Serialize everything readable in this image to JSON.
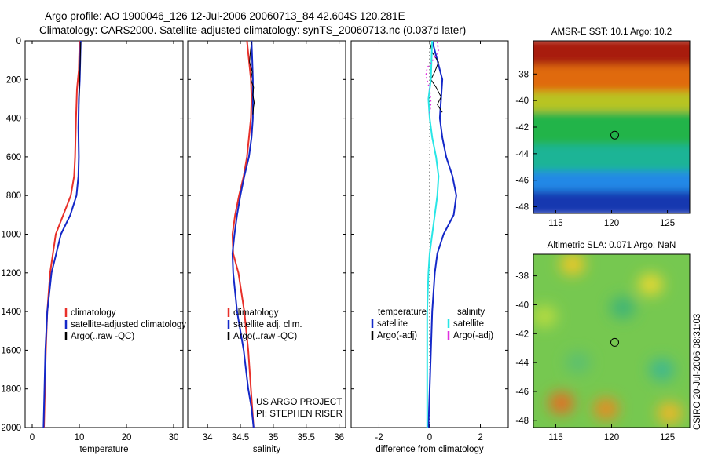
{
  "header": {
    "line1": "Argo profile: AO 1900046_126 12-Jul-2006 20060713_84 42.604S 120.281E",
    "line2": "Climatology: CARS2000. Satellite-adjusted climatology: synTS_20060713.nc (0.037d later)"
  },
  "footer": {
    "credit1": "US ARGO PROJECT",
    "credit2": "PI: STEPHEN RISER",
    "stamp": "CSIRO 20-Jul-2006 08:31:03"
  },
  "colors": {
    "red": "#e8302a",
    "blue": "#1428c8",
    "black": "#000000",
    "cyan": "#28e6e6",
    "magenta": "#e030e0"
  },
  "chart_data": [
    {
      "id": "temperature",
      "type": "line",
      "xlabel": "temperature",
      "xlim": [
        -1.5,
        32
      ],
      "ylim": [
        2000,
        0
      ],
      "xticks": [
        0,
        10,
        20,
        30
      ],
      "yticks": [
        0,
        200,
        400,
        600,
        800,
        1000,
        1200,
        1400,
        1600,
        1800,
        2000
      ],
      "series": [
        {
          "name": "climatology",
          "color": "red",
          "width": 2,
          "x": [
            10.1,
            10.0,
            9.9,
            9.5,
            9.3,
            9.1,
            8.9,
            8.2,
            6.6,
            5.0,
            3.8,
            3.2,
            2.9,
            2.7,
            2.6,
            2.5
          ],
          "y": [
            0,
            50,
            150,
            250,
            400,
            600,
            700,
            800,
            900,
            1000,
            1200,
            1400,
            1600,
            1800,
            1900,
            2000
          ]
        },
        {
          "name": "satellite-adjusted climatology",
          "color": "blue",
          "width": 2,
          "x": [
            10.3,
            10.2,
            10.1,
            9.9,
            9.8,
            9.9,
            9.8,
            9.4,
            8.1,
            6.1,
            4.1,
            3.2,
            2.8,
            2.6,
            2.4
          ],
          "y": [
            0,
            100,
            200,
            300,
            450,
            600,
            700,
            800,
            900,
            1000,
            1200,
            1400,
            1600,
            1800,
            2000
          ]
        },
        {
          "name": "Argo(..raw -QC)",
          "color": "black",
          "width": 1,
          "x": [
            10.3,
            10.2,
            10.1,
            10.0,
            9.9
          ],
          "y": [
            5,
            100,
            180,
            260,
            350
          ]
        }
      ],
      "legend": [
        {
          "label": "climatology",
          "color": "red"
        },
        {
          "label": "satellite-adjusted climatology",
          "color": "blue"
        },
        {
          "label": "Argo(..raw -QC)",
          "color": "black"
        }
      ]
    },
    {
      "id": "salinity",
      "type": "line",
      "xlabel": "salinity",
      "xlim": [
        33.7,
        36.1
      ],
      "ylim": [
        2000,
        0
      ],
      "xticks": [
        34,
        34.5,
        35,
        35.5,
        36
      ],
      "yticks": [
        0,
        200,
        400,
        600,
        800,
        1000,
        1200,
        1400,
        1600,
        1800,
        2000
      ],
      "series": [
        {
          "name": "climatology",
          "color": "red",
          "width": 2,
          "x": [
            34.6,
            34.63,
            34.66,
            34.67,
            34.66,
            34.63,
            34.6,
            34.55,
            34.48,
            34.42,
            34.38,
            34.39,
            34.47,
            34.56,
            34.62,
            34.66,
            34.7
          ],
          "y": [
            0,
            100,
            200,
            300,
            400,
            500,
            600,
            700,
            800,
            900,
            1000,
            1100,
            1200,
            1400,
            1600,
            1800,
            2000
          ]
        },
        {
          "name": "satellite adj. clim.",
          "color": "blue",
          "width": 2,
          "x": [
            34.67,
            34.68,
            34.69,
            34.69,
            34.69,
            34.67,
            34.63,
            34.56,
            34.5,
            34.45,
            34.41,
            34.38,
            34.39,
            34.45,
            34.55,
            34.62,
            34.67,
            34.7
          ],
          "y": [
            0,
            100,
            200,
            300,
            400,
            500,
            600,
            700,
            800,
            900,
            1000,
            1100,
            1200,
            1400,
            1600,
            1800,
            1900,
            2000
          ]
        },
        {
          "name": "Argo(..raw -QC)",
          "color": "black",
          "width": 1,
          "x": [
            34.67,
            34.65,
            34.64,
            34.68,
            34.66,
            34.7,
            34.69,
            34.71,
            34.7,
            34.69
          ],
          "y": [
            5,
            60,
            110,
            160,
            200,
            240,
            280,
            320,
            340,
            380
          ]
        }
      ],
      "legend": [
        {
          "label": "climatology",
          "color": "red"
        },
        {
          "label": "satellite adj. clim.",
          "color": "blue"
        },
        {
          "label": "Argo(..raw -QC)",
          "color": "black"
        }
      ]
    },
    {
      "id": "difference",
      "type": "line",
      "xlabel": "difference from climatology",
      "xlim": [
        -3.1,
        3.1
      ],
      "ylim": [
        2000,
        0
      ],
      "xticks": [
        -2,
        0,
        2
      ],
      "yticks": [
        0,
        200,
        400,
        600,
        800,
        1000,
        1200,
        1400,
        1600,
        1800,
        2000
      ],
      "zero_line": true,
      "series": [
        {
          "name": "temperature satellite",
          "color": "blue",
          "width": 2,
          "x": [
            0.1,
            0.3,
            0.5,
            0.45,
            0.4,
            0.5,
            0.65,
            0.9,
            1.05,
            0.95,
            0.55,
            0.3,
            0.2,
            0.1,
            0.05,
            0.0,
            -0.05
          ],
          "y": [
            0,
            100,
            200,
            300,
            400,
            500,
            600,
            700,
            800,
            900,
            1000,
            1100,
            1200,
            1400,
            1600,
            1800,
            2000
          ]
        },
        {
          "name": "temperature Argo(-adj)",
          "color": "black",
          "width": 1,
          "x": [
            0.0,
            0.1,
            0.35,
            0.2,
            0.05,
            0.25,
            0.45,
            0.3,
            0.5
          ],
          "y": [
            5,
            60,
            110,
            160,
            200,
            240,
            290,
            330,
            370
          ]
        },
        {
          "name": "salinity satellite",
          "color": "cyan",
          "width": 2,
          "x": [
            0.1,
            0.07,
            0.05,
            -0.05,
            0.0,
            0.1,
            0.25,
            0.35,
            0.3,
            0.2,
            0.1,
            0.0,
            -0.05,
            -0.1,
            -0.1,
            -0.1,
            -0.1
          ],
          "y": [
            0,
            100,
            200,
            300,
            400,
            500,
            600,
            700,
            800,
            900,
            1000,
            1100,
            1200,
            1400,
            1600,
            1800,
            2000
          ]
        },
        {
          "name": "salinity Argo(-adj)",
          "color": "magenta",
          "width": 1.5,
          "dashed": true,
          "x": [
            0.3,
            0.35,
            -0.1,
            -0.15,
            0.0,
            0.05,
            0.0
          ],
          "y": [
            5,
            60,
            140,
            180,
            250,
            320,
            380
          ]
        }
      ],
      "legend_left_title": "temperature",
      "legend_right_title": "salinity",
      "legend": [
        {
          "label": "satellite",
          "color": "blue",
          "col": "left"
        },
        {
          "label": "Argo(-adj)",
          "color": "black",
          "col": "left"
        },
        {
          "label": "satellite",
          "color": "cyan",
          "col": "right"
        },
        {
          "label": "Argo(-adj)",
          "color": "magenta",
          "col": "right"
        }
      ]
    }
  ],
  "maps": [
    {
      "id": "sst",
      "type": "heatmap",
      "title": "AMSR-E SST: 10.1 Argo: 10.2",
      "xlim": [
        113,
        127
      ],
      "ylim": [
        -48.5,
        -35.5
      ],
      "xticks": [
        115,
        120,
        125
      ],
      "yticks": [
        -38,
        -40,
        -42,
        -44,
        -46,
        -48
      ],
      "marker": {
        "lon": 120.281,
        "lat": -42.604
      },
      "color_bands": [
        {
          "lat_from": -35.5,
          "lat_to": -37.5,
          "color": "#a81c08"
        },
        {
          "lat_from": -37.5,
          "lat_to": -39.5,
          "color": "#e06a10"
        },
        {
          "lat_from": -39.5,
          "lat_to": -41.0,
          "color": "#b8c420"
        },
        {
          "lat_from": -41.0,
          "lat_to": -43.5,
          "color": "#22b44a"
        },
        {
          "lat_from": -43.5,
          "lat_to": -45.5,
          "color": "#1cb496"
        },
        {
          "lat_from": -45.5,
          "lat_to": -47.0,
          "color": "#2488e6"
        },
        {
          "lat_from": -47.0,
          "lat_to": -48.5,
          "color": "#1438b0"
        }
      ]
    },
    {
      "id": "sla",
      "type": "heatmap",
      "title": "Altimetric SLA: 0.071 Argo: NaN",
      "xlim": [
        113,
        127
      ],
      "ylim": [
        -48.5,
        -36.5
      ],
      "xticks": [
        115,
        120,
        125
      ],
      "yticks": [
        -38,
        -40,
        -42,
        -44,
        -46,
        -48
      ],
      "marker": {
        "lon": 120.281,
        "lat": -42.604
      },
      "base_color": "#76c850",
      "blobs": [
        {
          "lon": 116.5,
          "lat": -37.2,
          "color": "#f0c828"
        },
        {
          "lon": 123.5,
          "lat": -38.6,
          "color": "#e8d830"
        },
        {
          "lon": 114.0,
          "lat": -40.8,
          "color": "#b8dc40"
        },
        {
          "lon": 121.0,
          "lat": -40.2,
          "color": "#3cb478"
        },
        {
          "lon": 124.5,
          "lat": -44.5,
          "color": "#3cb890"
        },
        {
          "lon": 117.0,
          "lat": -44.0,
          "color": "#5cc070"
        },
        {
          "lon": 115.5,
          "lat": -46.8,
          "color": "#e86a20"
        },
        {
          "lon": 119.5,
          "lat": -47.2,
          "color": "#e88a24"
        },
        {
          "lon": 125.2,
          "lat": -47.5,
          "color": "#f0b828"
        }
      ]
    }
  ]
}
